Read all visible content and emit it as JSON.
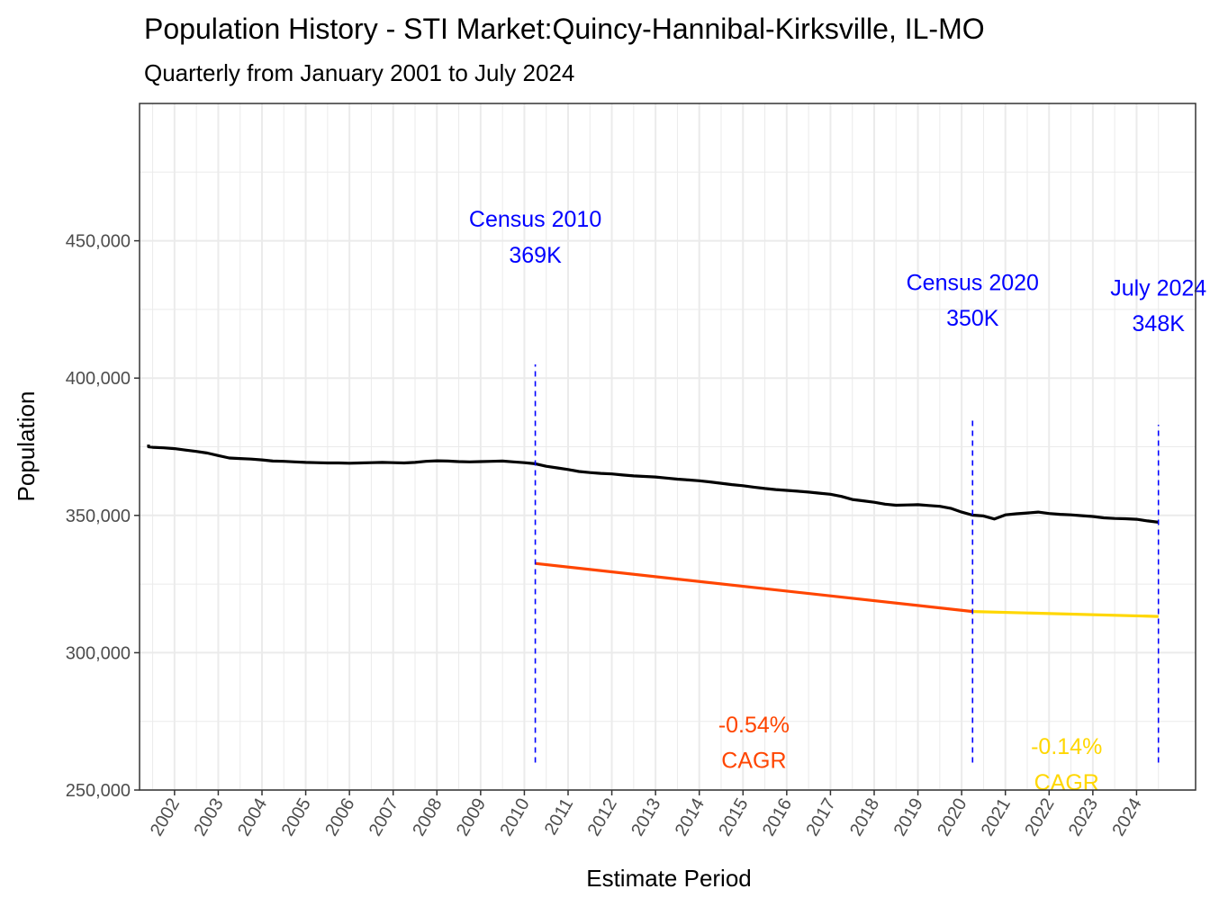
{
  "colors": {
    "population": "#000000",
    "cagr_2010_2020": "#FF4500",
    "cagr_2020_2024": "#FFD700",
    "census_marker": "#0000FF",
    "annotation_text": "#0000FF"
  },
  "chart_data": {
    "type": "line",
    "title": "Population History - STI Market:Quincy-Hannibal-Kirksville, IL-MO",
    "subtitle": "Quarterly from January 2001 to July 2024",
    "xlabel": "Estimate Period",
    "ylabel": "Population",
    "xlim": [
      2001.2,
      2025.35
    ],
    "ylim": [
      250000,
      500000
    ],
    "y_ticks": [
      250000,
      300000,
      350000,
      400000,
      450000
    ],
    "y_tick_labels": [
      "250,000",
      "300,000",
      "350,000",
      "400,000",
      "450,000"
    ],
    "x_tick_labels": [
      "2002",
      "2003",
      "2004",
      "2005",
      "2006",
      "2007",
      "2008",
      "2009",
      "2010",
      "2011",
      "2012",
      "2013",
      "2014",
      "2015",
      "2016",
      "2017",
      "2018",
      "2019",
      "2020",
      "2021",
      "2022",
      "2023",
      "2024"
    ],
    "series": [
      {
        "name": "Population",
        "x": [
          2001.0,
          2001.25,
          2001.5,
          2001.75,
          2002.0,
          2002.25,
          2002.5,
          2002.75,
          2003.0,
          2003.25,
          2003.5,
          2003.75,
          2004.0,
          2004.25,
          2004.5,
          2004.75,
          2005.0,
          2005.25,
          2005.5,
          2005.75,
          2006.0,
          2006.25,
          2006.5,
          2006.75,
          2007.0,
          2007.25,
          2007.5,
          2007.75,
          2008.0,
          2008.25,
          2008.5,
          2008.75,
          2009.0,
          2009.25,
          2009.5,
          2009.75,
          2010.0,
          2010.25,
          2010.5,
          2010.75,
          2011.0,
          2011.25,
          2011.5,
          2011.75,
          2012.0,
          2012.25,
          2012.5,
          2012.75,
          2013.0,
          2013.25,
          2013.5,
          2013.75,
          2014.0,
          2014.25,
          2014.5,
          2014.75,
          2015.0,
          2015.25,
          2015.5,
          2015.75,
          2016.0,
          2016.25,
          2016.5,
          2016.75,
          2017.0,
          2017.25,
          2017.5,
          2017.75,
          2018.0,
          2018.25,
          2018.5,
          2018.75,
          2019.0,
          2019.25,
          2019.5,
          2019.75,
          2020.0,
          2020.25,
          2020.5,
          2020.75,
          2021.0,
          2021.25,
          2021.5,
          2021.75,
          2022.0,
          2022.25,
          2022.5,
          2022.75,
          2023.0,
          2023.25,
          2023.5,
          2023.75,
          2024.0,
          2024.25,
          2024.5
        ],
        "values": [
          375800,
          375000,
          374800,
          374600,
          374300,
          373800,
          373300,
          372700,
          371800,
          370900,
          370700,
          370500,
          370200,
          369800,
          369700,
          369500,
          369300,
          369200,
          369100,
          369100,
          369000,
          369100,
          369200,
          369300,
          369200,
          369100,
          369300,
          369700,
          369900,
          369800,
          369600,
          369500,
          369600,
          369700,
          369800,
          369500,
          369200,
          368800,
          367900,
          367300,
          366700,
          366000,
          365600,
          365300,
          365100,
          364700,
          364400,
          364200,
          364000,
          363600,
          363200,
          362900,
          362600,
          362200,
          361700,
          361200,
          360800,
          360300,
          359800,
          359400,
          359100,
          358800,
          358500,
          358100,
          357700,
          356900,
          355800,
          355300,
          354800,
          354100,
          353700,
          353800,
          353900,
          353600,
          353300,
          352600,
          351200,
          350100,
          349800,
          348700,
          350200,
          350600,
          350900,
          351200,
          350700,
          350400,
          350200,
          349900,
          349600,
          349100,
          348900,
          348800,
          348600,
          348000,
          347500
        ]
      },
      {
        "name": "CAGR 2010-2020",
        "x": [
          2010.25,
          2020.25
        ],
        "values": [
          332500,
          315000
        ]
      },
      {
        "name": "CAGR 2020-2024",
        "x": [
          2020.25,
          2024.5
        ],
        "values": [
          315000,
          313200
        ]
      }
    ],
    "markers": [
      {
        "x": 2010.25,
        "y_from": 260000,
        "y_to": 405000
      },
      {
        "x": 2020.25,
        "y_from": 260000,
        "y_to": 385000
      },
      {
        "x": 2024.5,
        "y_from": 260000,
        "y_to": 383000
      }
    ],
    "annotations": [
      {
        "id": "census-2010",
        "line1": "Census 2010",
        "line2": "369K",
        "x": 2010.25,
        "y1": 458000,
        "y2": 445000,
        "color": "#0000FF"
      },
      {
        "id": "census-2020",
        "line1": "Census 2020",
        "line2": "350K",
        "x": 2020.25,
        "y1": 435000,
        "y2": 422000,
        "color": "#0000FF"
      },
      {
        "id": "july-2024",
        "line1": "July 2024",
        "line2": "348K",
        "x": 2024.5,
        "y1": 433000,
        "y2": 420000,
        "color": "#0000FF"
      },
      {
        "id": "cagr-2010-2020",
        "line1": "-0.54%",
        "line2": "CAGR",
        "x": 2015.25,
        "y1": 274000,
        "y2": 261000,
        "color": "#FF4500"
      },
      {
        "id": "cagr-2020-2024",
        "line1": "-0.14%",
        "line2": "CAGR",
        "x": 2022.4,
        "y1": 266000,
        "y2": 253000,
        "color": "#FFD700"
      }
    ]
  }
}
